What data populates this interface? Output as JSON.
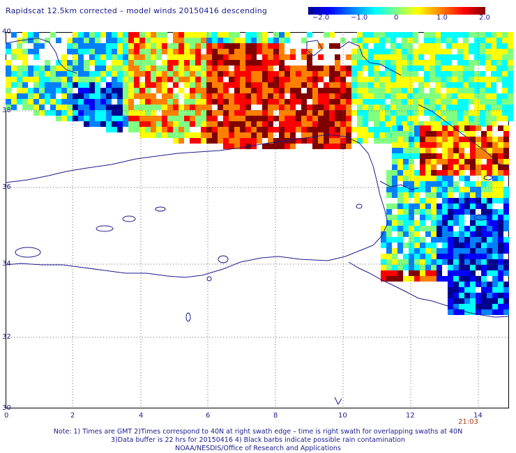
{
  "title": "Rapidscat 12.5km corrected – model winds 20150416 descending",
  "colorbar": {
    "labels": [
      "−2.0",
      "−1.0",
      "0",
      "1.0",
      "2.0"
    ]
  },
  "axes": {
    "y_ticks": [
      "40",
      "38",
      "36",
      "34",
      "32",
      "30"
    ],
    "x_ticks": [
      "0",
      "2",
      "4",
      "6",
      "8",
      "10",
      "12",
      "14"
    ]
  },
  "timestamp": "21:03",
  "notes": [
    "Note: 1) Times are GMT 2)Times correspond to 40N at right swath edge – time is right swath for overlapping swaths at 40N",
    "3)Data buffer is 22 hrs for 20150416 4) Black barbs indicate possible rain contamination",
    "NOAA/NESDIS/Office of Research and Applications"
  ],
  "colors": {
    "text": "#1a1a8c",
    "coast": "#1a1a8c",
    "scale": [
      "#00008f",
      "#0000ff",
      "#0080ff",
      "#00ffff",
      "#80ff80",
      "#ffff00",
      "#ff8000",
      "#ff0000",
      "#800000"
    ]
  }
}
